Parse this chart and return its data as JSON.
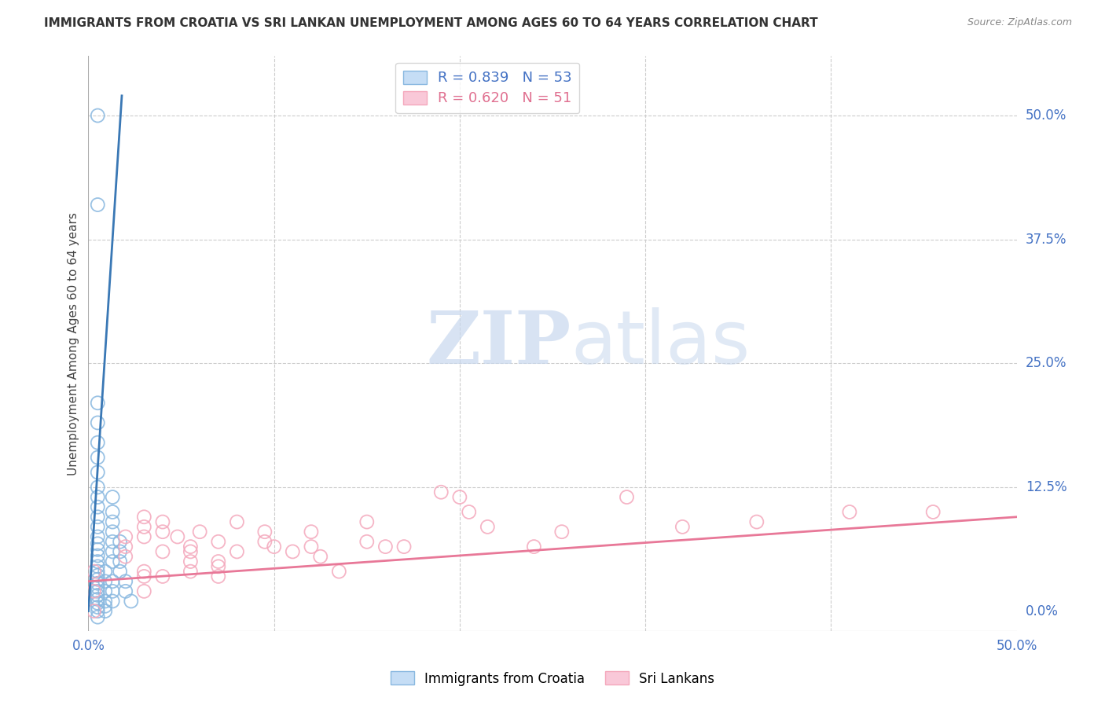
{
  "title": "IMMIGRANTS FROM CROATIA VS SRI LANKAN UNEMPLOYMENT AMONG AGES 60 TO 64 YEARS CORRELATION CHART",
  "source": "Source: ZipAtlas.com",
  "ylabel": "Unemployment Among Ages 60 to 64 years",
  "xlim": [
    0.0,
    0.5
  ],
  "ylim": [
    -0.02,
    0.56
  ],
  "ytick_vals": [
    0.0,
    0.125,
    0.25,
    0.375,
    0.5
  ],
  "ytick_labels": [
    "0.0%",
    "12.5%",
    "25.0%",
    "37.5%",
    "50.0%"
  ],
  "xtick_vals": [
    0.0,
    0.1,
    0.2,
    0.3,
    0.4,
    0.5
  ],
  "xtick_labels": [
    "0.0%",
    "",
    "",
    "",
    "",
    "50.0%"
  ],
  "croatia_color": "#89b8e0",
  "srilankan_color": "#f4a8bc",
  "croatia_line_color": "#3a78b5",
  "srilankan_line_color": "#e87898",
  "watermark_zip": "ZIP",
  "watermark_atlas": "atlas",
  "background_color": "#ffffff",
  "grid_color": "#cccccc",
  "title_color": "#333333",
  "axis_color": "#4472c4",
  "legend_box_color1": "#c5ddf5",
  "legend_box_color2": "#f9c8d8",
  "legend_text_color1": "#4472c4",
  "legend_text_color2": "#e07090",
  "croatia_scatter": [
    [
      0.005,
      0.5
    ],
    [
      0.005,
      0.41
    ],
    [
      0.005,
      0.21
    ],
    [
      0.005,
      0.19
    ],
    [
      0.005,
      0.17
    ],
    [
      0.005,
      0.155
    ],
    [
      0.005,
      0.14
    ],
    [
      0.005,
      0.125
    ],
    [
      0.005,
      0.115
    ],
    [
      0.005,
      0.105
    ],
    [
      0.005,
      0.095
    ],
    [
      0.005,
      0.085
    ],
    [
      0.005,
      0.075
    ],
    [
      0.005,
      0.068
    ],
    [
      0.005,
      0.062
    ],
    [
      0.005,
      0.056
    ],
    [
      0.005,
      0.05
    ],
    [
      0.005,
      0.045
    ],
    [
      0.005,
      0.04
    ],
    [
      0.005,
      0.036
    ],
    [
      0.005,
      0.032
    ],
    [
      0.005,
      0.028
    ],
    [
      0.005,
      0.024
    ],
    [
      0.005,
      0.02
    ],
    [
      0.005,
      0.016
    ],
    [
      0.005,
      0.012
    ],
    [
      0.005,
      0.008
    ],
    [
      0.005,
      0.004
    ],
    [
      0.005,
      0.0
    ],
    [
      0.005,
      -0.006
    ],
    [
      0.009,
      0.0
    ],
    [
      0.009,
      0.005
    ],
    [
      0.009,
      0.01
    ],
    [
      0.009,
      0.02
    ],
    [
      0.009,
      0.03
    ],
    [
      0.009,
      0.04
    ],
    [
      0.013,
      0.01
    ],
    [
      0.013,
      0.02
    ],
    [
      0.013,
      0.03
    ],
    [
      0.013,
      0.05
    ],
    [
      0.013,
      0.06
    ],
    [
      0.013,
      0.07
    ],
    [
      0.013,
      0.08
    ],
    [
      0.013,
      0.09
    ],
    [
      0.013,
      0.1
    ],
    [
      0.013,
      0.115
    ],
    [
      0.017,
      0.04
    ],
    [
      0.017,
      0.05
    ],
    [
      0.017,
      0.06
    ],
    [
      0.017,
      0.07
    ],
    [
      0.02,
      0.02
    ],
    [
      0.02,
      0.03
    ],
    [
      0.023,
      0.01
    ]
  ],
  "srilankan_scatter": [
    [
      0.003,
      0.04
    ],
    [
      0.003,
      0.02
    ],
    [
      0.003,
      0.0
    ],
    [
      0.02,
      0.055
    ],
    [
      0.02,
      0.065
    ],
    [
      0.02,
      0.075
    ],
    [
      0.03,
      0.04
    ],
    [
      0.03,
      0.075
    ],
    [
      0.03,
      0.085
    ],
    [
      0.03,
      0.095
    ],
    [
      0.03,
      0.035
    ],
    [
      0.03,
      0.02
    ],
    [
      0.04,
      0.08
    ],
    [
      0.04,
      0.09
    ],
    [
      0.04,
      0.035
    ],
    [
      0.04,
      0.06
    ],
    [
      0.048,
      0.075
    ],
    [
      0.055,
      0.05
    ],
    [
      0.055,
      0.06
    ],
    [
      0.055,
      0.065
    ],
    [
      0.055,
      0.04
    ],
    [
      0.06,
      0.08
    ],
    [
      0.07,
      0.07
    ],
    [
      0.07,
      0.05
    ],
    [
      0.07,
      0.045
    ],
    [
      0.07,
      0.035
    ],
    [
      0.08,
      0.09
    ],
    [
      0.08,
      0.06
    ],
    [
      0.095,
      0.08
    ],
    [
      0.095,
      0.07
    ],
    [
      0.1,
      0.065
    ],
    [
      0.11,
      0.06
    ],
    [
      0.12,
      0.08
    ],
    [
      0.12,
      0.065
    ],
    [
      0.125,
      0.055
    ],
    [
      0.135,
      0.04
    ],
    [
      0.15,
      0.09
    ],
    [
      0.15,
      0.07
    ],
    [
      0.16,
      0.065
    ],
    [
      0.17,
      0.065
    ],
    [
      0.19,
      0.12
    ],
    [
      0.2,
      0.115
    ],
    [
      0.205,
      0.1
    ],
    [
      0.215,
      0.085
    ],
    [
      0.24,
      0.065
    ],
    [
      0.255,
      0.08
    ],
    [
      0.29,
      0.115
    ],
    [
      0.32,
      0.085
    ],
    [
      0.36,
      0.09
    ],
    [
      0.41,
      0.1
    ],
    [
      0.455,
      0.1
    ]
  ],
  "croatia_trendline_x": [
    0.0,
    0.018
  ],
  "croatia_trendline_y": [
    0.0,
    0.52
  ],
  "srilankan_trendline_x": [
    0.0,
    0.5
  ],
  "srilankan_trendline_y": [
    0.03,
    0.095
  ]
}
